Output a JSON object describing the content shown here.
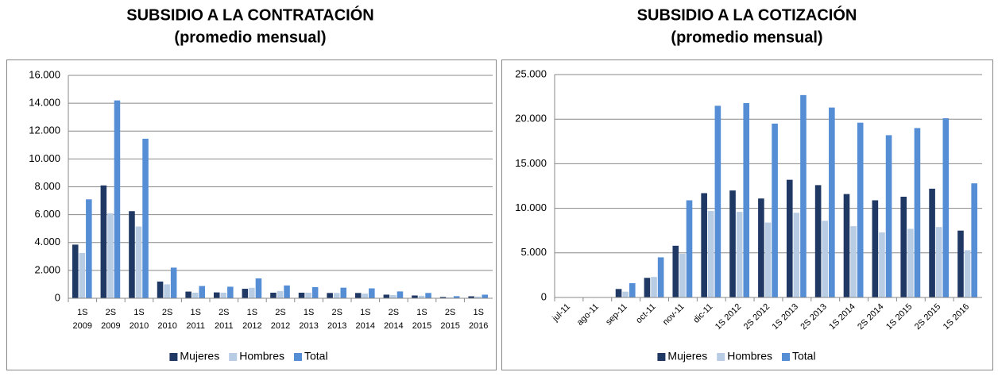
{
  "chart_data": [
    {
      "type": "bar",
      "title": "SUBSIDIO A LA CONTRATACIÓN",
      "subtitle": "(promedio mensual)",
      "categories": [
        "1S 2009",
        "2S 2009",
        "1S 2010",
        "2S 2010",
        "1S 2011",
        "2S 2011",
        "1S 2012",
        "2S 2012",
        "1S 2013",
        "2S 2013",
        "1S 2014",
        "2S 2014",
        "1S 2015",
        "2S 2015",
        "1S 2016"
      ],
      "series": [
        {
          "name": "Mujeres",
          "color": "#1f3864",
          "values": [
            3850,
            8100,
            6250,
            1200,
            480,
            420,
            680,
            400,
            400,
            380,
            380,
            260,
            200,
            90,
            140
          ]
        },
        {
          "name": "Hombres",
          "color": "#b8cce4",
          "values": [
            3250,
            6100,
            5150,
            1000,
            400,
            400,
            750,
            520,
            400,
            380,
            330,
            230,
            180,
            60,
            120
          ]
        },
        {
          "name": "Total",
          "color": "#558ed5",
          "values": [
            7100,
            14200,
            11450,
            2200,
            880,
            830,
            1430,
            920,
            800,
            760,
            710,
            490,
            380,
            150,
            260
          ]
        }
      ],
      "ylim": [
        0,
        16000
      ],
      "yticks": [
        0,
        {
          "value": 2000,
          "label": "2.000"
        },
        {
          "value": 4000,
          "label": "4.000"
        },
        {
          "value": 6000,
          "label": "6.000"
        },
        {
          "value": 8000,
          "label": "8.000"
        },
        {
          "value": 10000,
          "label": "10.000"
        },
        {
          "value": 12000,
          "label": "12.000"
        },
        {
          "value": 14000,
          "label": "14.000"
        },
        {
          "value": 16000,
          "label": "16.000"
        }
      ],
      "grid": true,
      "legend": "bottom"
    },
    {
      "type": "bar",
      "title": "SUBSIDIO A LA COTIZACIÓN",
      "subtitle": "(promedio mensual)",
      "categories": [
        "jul-11",
        "ago-11",
        "sep-11",
        "oct-11",
        "nov-11",
        "dic-11",
        "1S 2012",
        "2S 2012",
        "1S 2013",
        "2S 2013",
        "1S 2014",
        "2S 2014",
        "1S 2015",
        "2S 2015",
        "1S 2016"
      ],
      "series": [
        {
          "name": "Mujeres",
          "color": "#1f3864",
          "values": [
            0,
            0,
            950,
            2200,
            5800,
            11700,
            12000,
            11100,
            13200,
            12600,
            11600,
            10900,
            11300,
            12200,
            7500
          ]
        },
        {
          "name": "Hombres",
          "color": "#b8cce4",
          "values": [
            0,
            0,
            650,
            2300,
            4900,
            9700,
            9600,
            8400,
            9500,
            8600,
            8000,
            7300,
            7700,
            7900,
            5300
          ]
        },
        {
          "name": "Total",
          "color": "#558ed5",
          "values": [
            0,
            0,
            1600,
            4500,
            10900,
            21500,
            21800,
            19500,
            22700,
            21300,
            19600,
            18200,
            19000,
            20100,
            12800
          ]
        }
      ],
      "ylim": [
        0,
        25000
      ],
      "yticks": [
        0,
        {
          "value": 5000,
          "label": "5.000"
        },
        {
          "value": 10000,
          "label": "10.000"
        },
        {
          "value": 15000,
          "label": "15.000"
        },
        {
          "value": 20000,
          "label": "20.000"
        },
        {
          "value": 25000,
          "label": "25.000"
        }
      ],
      "grid": true,
      "legend": "bottom",
      "rotate_labels": true
    }
  ]
}
